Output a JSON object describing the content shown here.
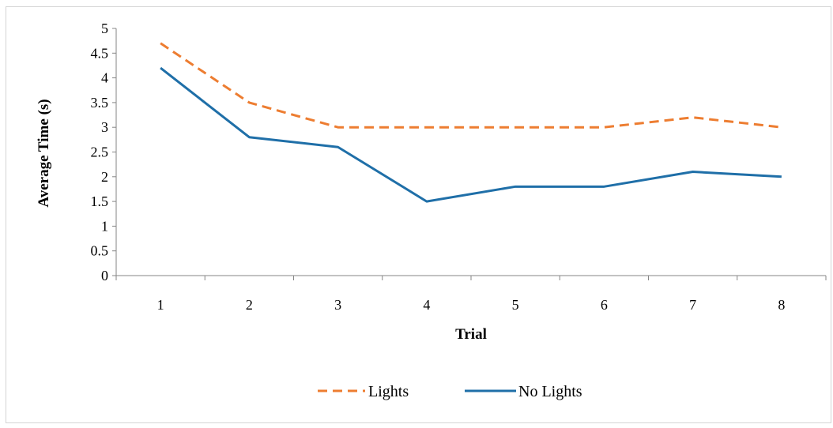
{
  "chart_data": {
    "type": "line",
    "title": "",
    "xlabel": "Trial",
    "ylabel": "Average Time (s)",
    "categories": [
      "1",
      "2",
      "3",
      "4",
      "5",
      "6",
      "7",
      "8"
    ],
    "y_ticks": [
      "0",
      "0.5",
      "1",
      "1.5",
      "2",
      "2.5",
      "3",
      "3.5",
      "4",
      "4.5",
      "5"
    ],
    "ylim": [
      0,
      5
    ],
    "grid": false,
    "legend_position": "bottom",
    "series": [
      {
        "name": "Lights",
        "values": [
          4.7,
          3.5,
          3.0,
          3.0,
          3.0,
          3.0,
          3.2,
          3.0
        ],
        "color": "#ed7d31",
        "line_style": "dashed"
      },
      {
        "name": "No Lights",
        "values": [
          4.2,
          2.8,
          2.6,
          1.5,
          1.8,
          1.8,
          2.1,
          2.0
        ],
        "color": "#1f6fa8",
        "line_style": "solid"
      }
    ]
  }
}
